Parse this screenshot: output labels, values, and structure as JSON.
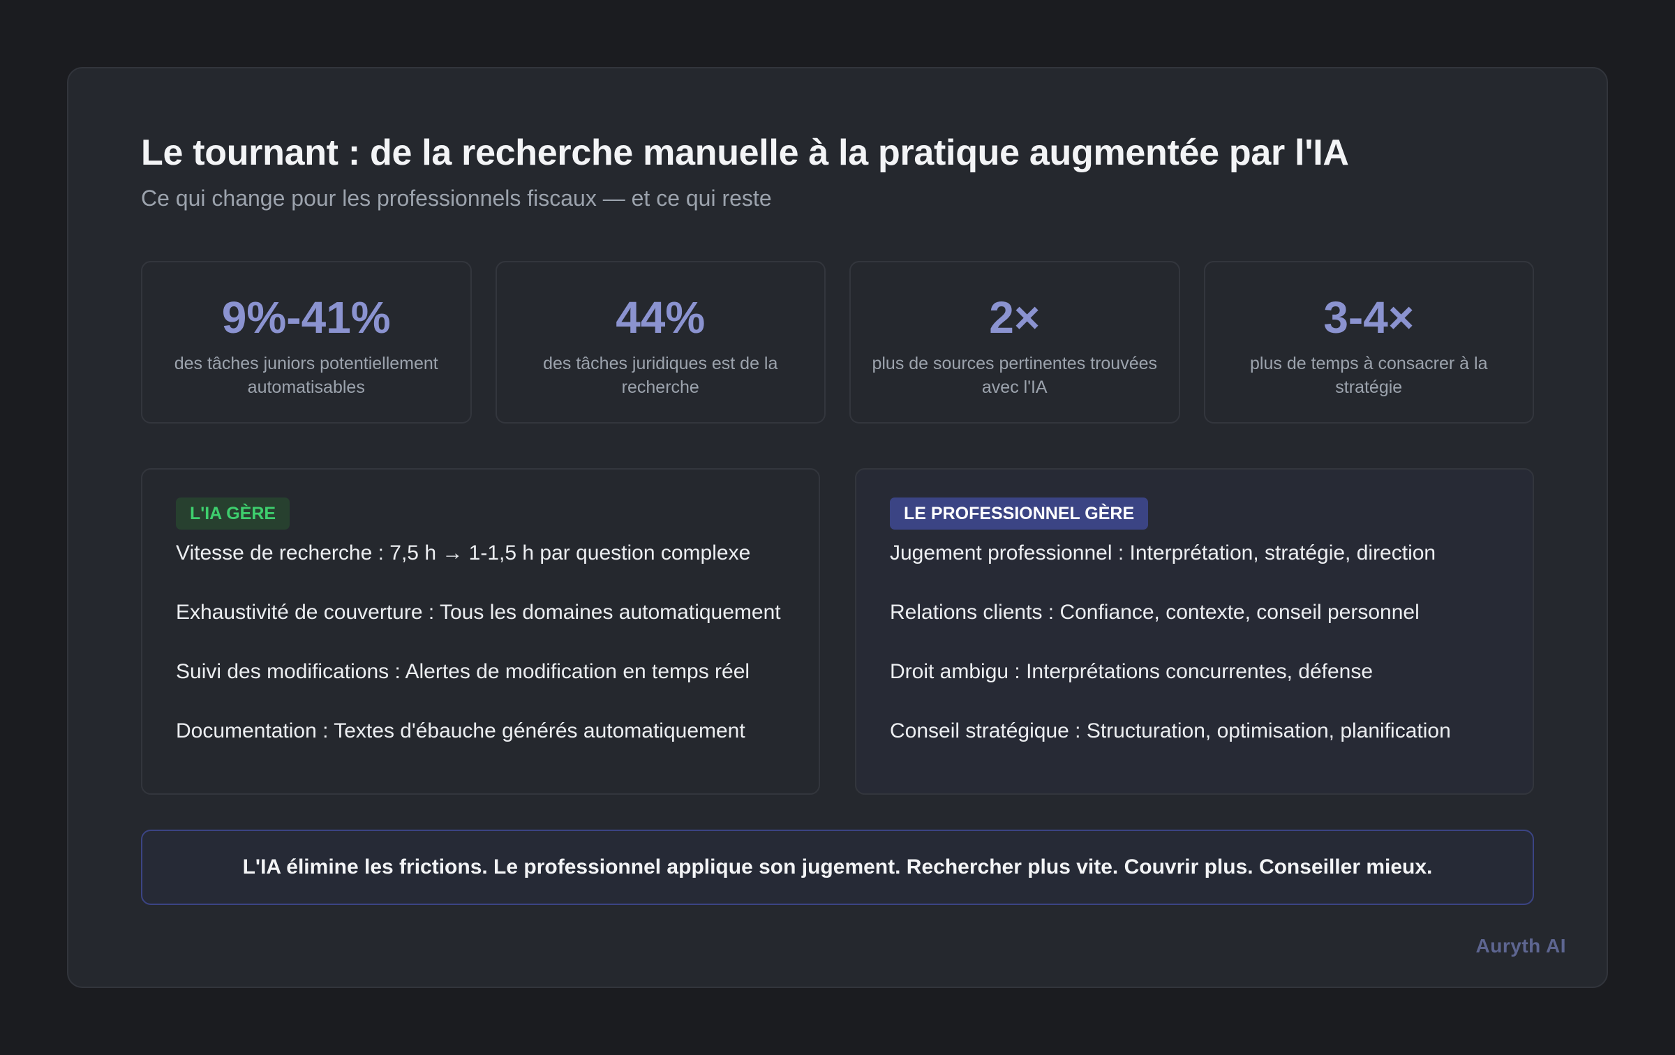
{
  "header": {
    "title": "Le tournant : de la recherche manuelle à la pratique augmentée par l'IA",
    "subtitle": "Ce qui change pour les professionnels fiscaux — et ce qui reste"
  },
  "stats": [
    {
      "value": "9%-41%",
      "label": "des tâches juniors potentiellement automatisables"
    },
    {
      "value": "44%",
      "label": "des tâches juridiques est de la recherche"
    },
    {
      "value": "2×",
      "label": "plus de sources pertinentes trouvées avec l'IA"
    },
    {
      "value": "3-4×",
      "label": "plus de temps à consacrer à la stratégie"
    }
  ],
  "panels": {
    "ai": {
      "badge": "L'IA GÈRE",
      "items": [
        "Vitesse de recherche : 7,5 h → 1-1,5 h par question complexe",
        "Exhaustivité de couverture : Tous les domaines automatiquement",
        "Suivi des modifications : Alertes de modification en temps réel",
        "Documentation : Textes d'ébauche générés automatiquement"
      ]
    },
    "pro": {
      "badge": "LE PROFESSIONNEL GÈRE",
      "items": [
        "Jugement professionnel : Interprétation, stratégie, direction",
        "Relations clients : Confiance, contexte, conseil personnel",
        "Droit ambigu : Interprétations concurrentes, défense",
        "Conseil stratégique : Structuration, optimisation, planification"
      ]
    }
  },
  "banner": {
    "text": "L'IA élimine les frictions. Le professionnel applique son jugement. Rechercher plus vite. Couvrir plus. Conseiller mieux."
  },
  "footer": {
    "brand": "Auryth AI"
  },
  "colors": {
    "background": "#1b1c20",
    "card": "#25282e",
    "accent": "#8b93d0",
    "ai_badge_text": "#3ecf6e",
    "ai_badge_bg": "#27402f",
    "pro_badge_bg": "#3b4484",
    "brand": "#5e6691"
  }
}
